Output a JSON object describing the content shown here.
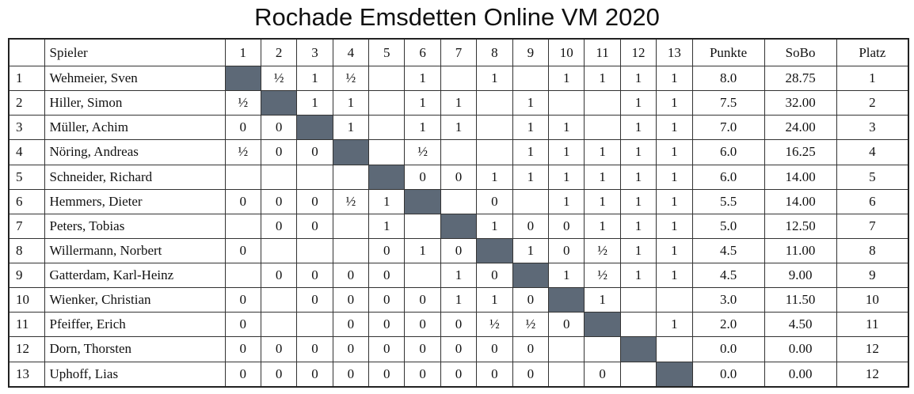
{
  "header": {
    "title": "Rochade Emsdetten Online VM 2020"
  },
  "table": {
    "columns": {
      "player": "Spieler",
      "rounds": [
        "1",
        "2",
        "3",
        "4",
        "5",
        "6",
        "7",
        "8",
        "9",
        "10",
        "11",
        "12",
        "13"
      ],
      "points": "Punkte",
      "sobo": "SoBo",
      "rank": "Platz"
    },
    "rows": [
      {
        "no": "1",
        "name": "Wehmeier, Sven",
        "results": [
          null,
          "½",
          "1",
          "½",
          null,
          "1",
          null,
          "1",
          null,
          "1",
          "1",
          "1",
          "1"
        ],
        "points": "8.0",
        "sobo": "28.75",
        "rank": "1"
      },
      {
        "no": "2",
        "name": "Hiller, Simon",
        "results": [
          "½",
          null,
          "1",
          "1",
          null,
          "1",
          "1",
          null,
          "1",
          null,
          null,
          "1",
          "1"
        ],
        "points": "7.5",
        "sobo": "32.00",
        "rank": "2"
      },
      {
        "no": "3",
        "name": "Müller, Achim",
        "results": [
          "0",
          "0",
          null,
          "1",
          null,
          "1",
          "1",
          null,
          "1",
          "1",
          null,
          "1",
          "1"
        ],
        "points": "7.0",
        "sobo": "24.00",
        "rank": "3"
      },
      {
        "no": "4",
        "name": "Nöring, Andreas",
        "results": [
          "½",
          "0",
          "0",
          null,
          null,
          "½",
          null,
          null,
          "1",
          "1",
          "1",
          "1",
          "1"
        ],
        "points": "6.0",
        "sobo": "16.25",
        "rank": "4"
      },
      {
        "no": "5",
        "name": "Schneider, Richard",
        "results": [
          null,
          null,
          null,
          null,
          null,
          "0",
          "0",
          "1",
          "1",
          "1",
          "1",
          "1",
          "1"
        ],
        "points": "6.0",
        "sobo": "14.00",
        "rank": "5"
      },
      {
        "no": "6",
        "name": "Hemmers, Dieter",
        "results": [
          "0",
          "0",
          "0",
          "½",
          "1",
          null,
          null,
          "0",
          null,
          "1",
          "1",
          "1",
          "1"
        ],
        "points": "5.5",
        "sobo": "14.00",
        "rank": "6"
      },
      {
        "no": "7",
        "name": "Peters, Tobias",
        "results": [
          null,
          "0",
          "0",
          null,
          "1",
          null,
          null,
          "1",
          "0",
          "0",
          "1",
          "1",
          "1"
        ],
        "points": "5.0",
        "sobo": "12.50",
        "rank": "7"
      },
      {
        "no": "8",
        "name": "Willermann, Norbert",
        "results": [
          "0",
          null,
          null,
          null,
          "0",
          "1",
          "0",
          null,
          "1",
          "0",
          "½",
          "1",
          "1"
        ],
        "points": "4.5",
        "sobo": "11.00",
        "rank": "8"
      },
      {
        "no": "9",
        "name": "Gatterdam, Karl-Heinz",
        "results": [
          null,
          "0",
          "0",
          "0",
          "0",
          null,
          "1",
          "0",
          null,
          "1",
          "½",
          "1",
          "1"
        ],
        "points": "4.5",
        "sobo": "9.00",
        "rank": "9"
      },
      {
        "no": "10",
        "name": "Wienker, Christian",
        "results": [
          "0",
          null,
          "0",
          "0",
          "0",
          "0",
          "1",
          "1",
          "0",
          null,
          "1",
          null,
          null
        ],
        "points": "3.0",
        "sobo": "11.50",
        "rank": "10"
      },
      {
        "no": "11",
        "name": "Pfeiffer, Erich",
        "results": [
          "0",
          null,
          null,
          "0",
          "0",
          "0",
          "0",
          "½",
          "½",
          "0",
          null,
          null,
          "1"
        ],
        "points": "2.0",
        "sobo": "4.50",
        "rank": "11"
      },
      {
        "no": "12",
        "name": "Dorn, Thorsten",
        "results": [
          "0",
          "0",
          "0",
          "0",
          "0",
          "0",
          "0",
          "0",
          "0",
          null,
          null,
          null,
          null
        ],
        "points": "0.0",
        "sobo": "0.00",
        "rank": "12"
      },
      {
        "no": "13",
        "name": "Uphoff, Lias",
        "results": [
          "0",
          "0",
          "0",
          "0",
          "0",
          "0",
          "0",
          "0",
          "0",
          null,
          "0",
          null,
          null
        ],
        "points": "0.0",
        "sobo": "0.00",
        "rank": "12"
      }
    ]
  }
}
